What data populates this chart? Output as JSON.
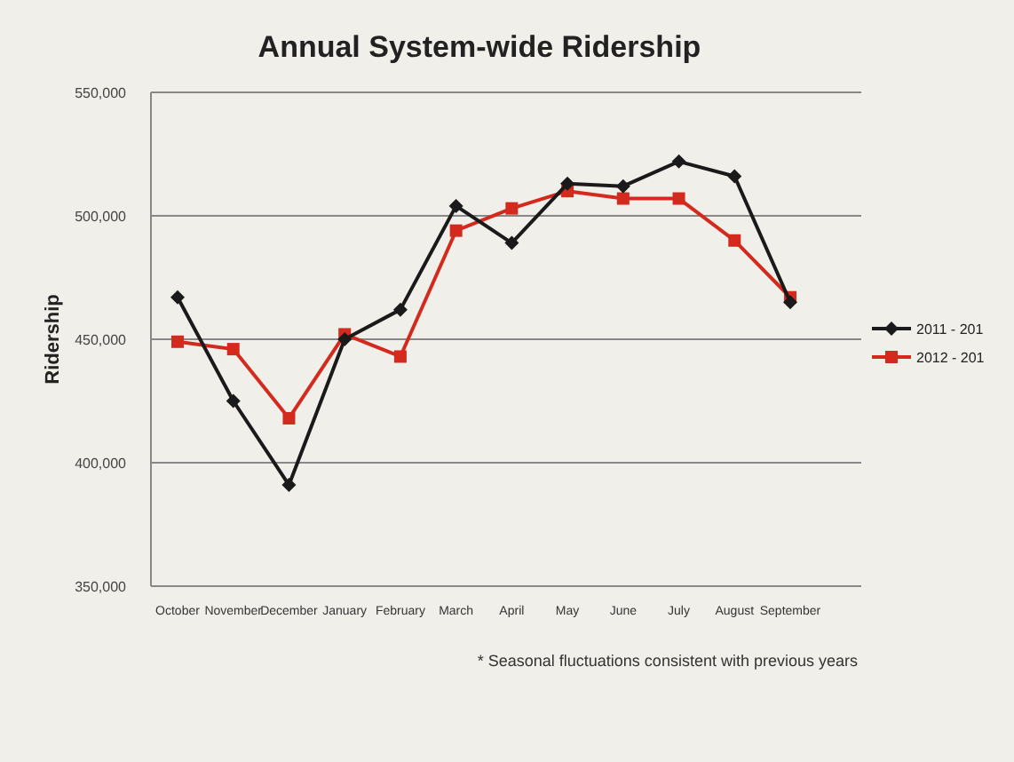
{
  "chart_data": {
    "type": "line",
    "title": "Annual System-wide Ridership",
    "ylabel": "Ridership",
    "categories": [
      "October",
      "November",
      "December",
      "January",
      "February",
      "March",
      "April",
      "May",
      "June",
      "July",
      "August",
      "September"
    ],
    "series": [
      {
        "name": "2011 - 201",
        "color": "#1a1a1a",
        "marker": "diamond",
        "values": [
          467000,
          425000,
          391000,
          450000,
          462000,
          504000,
          489000,
          513000,
          512000,
          522000,
          516000,
          465000
        ]
      },
      {
        "name": "2012 - 201",
        "color": "#d42a1e",
        "marker": "square",
        "values": [
          449000,
          446000,
          418000,
          452000,
          443000,
          494000,
          503000,
          510000,
          507000,
          507000,
          490000,
          467000
        ]
      }
    ],
    "ylim": [
      350000,
      550000
    ],
    "yticks": [
      {
        "value": 350000,
        "label": "350,000"
      },
      {
        "value": 400000,
        "label": "400,000"
      },
      {
        "value": 450000,
        "label": "450,000"
      },
      {
        "value": 500000,
        "label": "500,000"
      },
      {
        "value": 550000,
        "label": "550,000"
      }
    ],
    "grid": "y",
    "legend": "right",
    "line_style": "solid",
    "annotations": [
      "* Seasonal fluctuations consistent with previous years"
    ]
  }
}
